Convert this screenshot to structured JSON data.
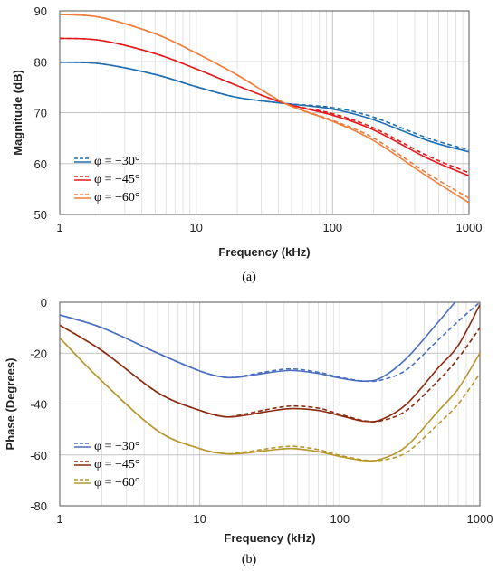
{
  "chart_data": [
    {
      "type": "line",
      "caption": "(a)",
      "xlabel": "Frequency (kHz)",
      "ylabel": "Magnitude (dB)",
      "xscale": "log",
      "xlim": [
        1,
        1000
      ],
      "ylim": [
        50,
        90
      ],
      "xticks": [
        "1",
        "10",
        "100",
        "1000"
      ],
      "yticks": [
        "50",
        "60",
        "70",
        "80",
        "90"
      ],
      "grid": true,
      "legend_position": "bottom-left",
      "legend": [
        "φ = −30°",
        "φ = −45°",
        "φ = −60°"
      ],
      "colors": [
        "#1f6fb2",
        "#e31a1c",
        "#f07d3a"
      ],
      "x": [
        1,
        2,
        5,
        10,
        20,
        45,
        100,
        200,
        500,
        1000
      ],
      "series": [
        {
          "name": "φ = −30°",
          "style": "solid",
          "values": [
            79.9,
            79.6,
            77.5,
            75.1,
            73.0,
            71.8,
            70.7,
            68.6,
            64.5,
            62.3
          ]
        },
        {
          "name": "φ = −30°",
          "style": "dashed",
          "values": [
            79.9,
            79.6,
            77.5,
            75.1,
            73.0,
            71.8,
            71.0,
            69.1,
            65.0,
            62.7
          ]
        },
        {
          "name": "φ = −45°",
          "style": "solid",
          "values": [
            84.6,
            84.2,
            81.6,
            78.6,
            75.3,
            71.8,
            69.5,
            66.6,
            61.0,
            57.6
          ]
        },
        {
          "name": "φ = −45°",
          "style": "dashed",
          "values": [
            84.6,
            84.2,
            81.6,
            78.6,
            75.3,
            71.8,
            69.8,
            67.0,
            61.5,
            58.2
          ]
        },
        {
          "name": "φ = −60°",
          "style": "solid",
          "values": [
            89.3,
            88.7,
            85.5,
            81.7,
            77.4,
            71.8,
            68.3,
            64.5,
            57.4,
            52.3
          ]
        },
        {
          "name": "φ = −60°",
          "style": "dashed",
          "values": [
            89.3,
            88.7,
            85.5,
            81.7,
            77.4,
            71.8,
            68.5,
            65.0,
            58.0,
            53.2
          ]
        }
      ]
    },
    {
      "type": "line",
      "caption": "(b)",
      "xlabel": "Frequency (kHz)",
      "ylabel": "Phase (Degrees)",
      "xscale": "log",
      "xlim": [
        1,
        1000
      ],
      "ylim": [
        -80,
        0
      ],
      "xticks": [
        "1",
        "10",
        "100",
        "1000"
      ],
      "yticks": [
        "-80",
        "-60",
        "-40",
        "-20",
        "0"
      ],
      "grid": true,
      "legend_position": "bottom-left",
      "legend": [
        "φ = −30°",
        "φ = −45°",
        "φ = −60°"
      ],
      "colors": [
        "#4a6fc2",
        "#8b2b10",
        "#b8962e"
      ],
      "x": [
        1,
        2,
        5,
        10,
        15,
        20,
        30,
        45,
        70,
        100,
        150,
        200,
        300,
        500,
        700,
        1000
      ],
      "series": [
        {
          "name": "φ = −30°",
          "style": "solid",
          "values": [
            -5,
            -10,
            -20,
            -27,
            -29.5,
            -29.3,
            -27.8,
            -26.8,
            -28,
            -29.8,
            -31,
            -29.5,
            -22,
            -8,
            1.5,
            null
          ]
        },
        {
          "name": "φ = −30°",
          "style": "dashed",
          "values": [
            -5,
            -10,
            -20,
            -27,
            -29.5,
            -29,
            -27.3,
            -26.2,
            -27.5,
            -29.5,
            -31,
            -30.5,
            -26.5,
            -15,
            -7.5,
            0
          ]
        },
        {
          "name": "φ = −45°",
          "style": "solid",
          "values": [
            -9,
            -19,
            -35.5,
            -42.5,
            -45,
            -44.6,
            -43,
            -41.8,
            -42.5,
            -44.5,
            -46.8,
            -46,
            -40,
            -26,
            -17,
            -1
          ]
        },
        {
          "name": "φ = −45°",
          "style": "dashed",
          "values": [
            -9,
            -19,
            -35.5,
            -42.5,
            -45,
            -44.2,
            -42.2,
            -40.8,
            -41.6,
            -44,
            -46.6,
            -46.5,
            -42.5,
            -31,
            -22,
            -10
          ]
        },
        {
          "name": "φ = −60°",
          "style": "solid",
          "values": [
            -14,
            -31,
            -50.5,
            -57.5,
            -59.5,
            -59.4,
            -58.3,
            -57.5,
            -58.7,
            -60.6,
            -62.2,
            -61.5,
            -56.5,
            -43,
            -34,
            -20
          ]
        },
        {
          "name": "φ = −60°",
          "style": "dashed",
          "values": [
            -14,
            -31,
            -50.5,
            -57.5,
            -59.5,
            -59,
            -57.6,
            -56.6,
            -57.9,
            -60.2,
            -62,
            -62,
            -59,
            -48,
            -40,
            -28
          ]
        }
      ]
    }
  ]
}
